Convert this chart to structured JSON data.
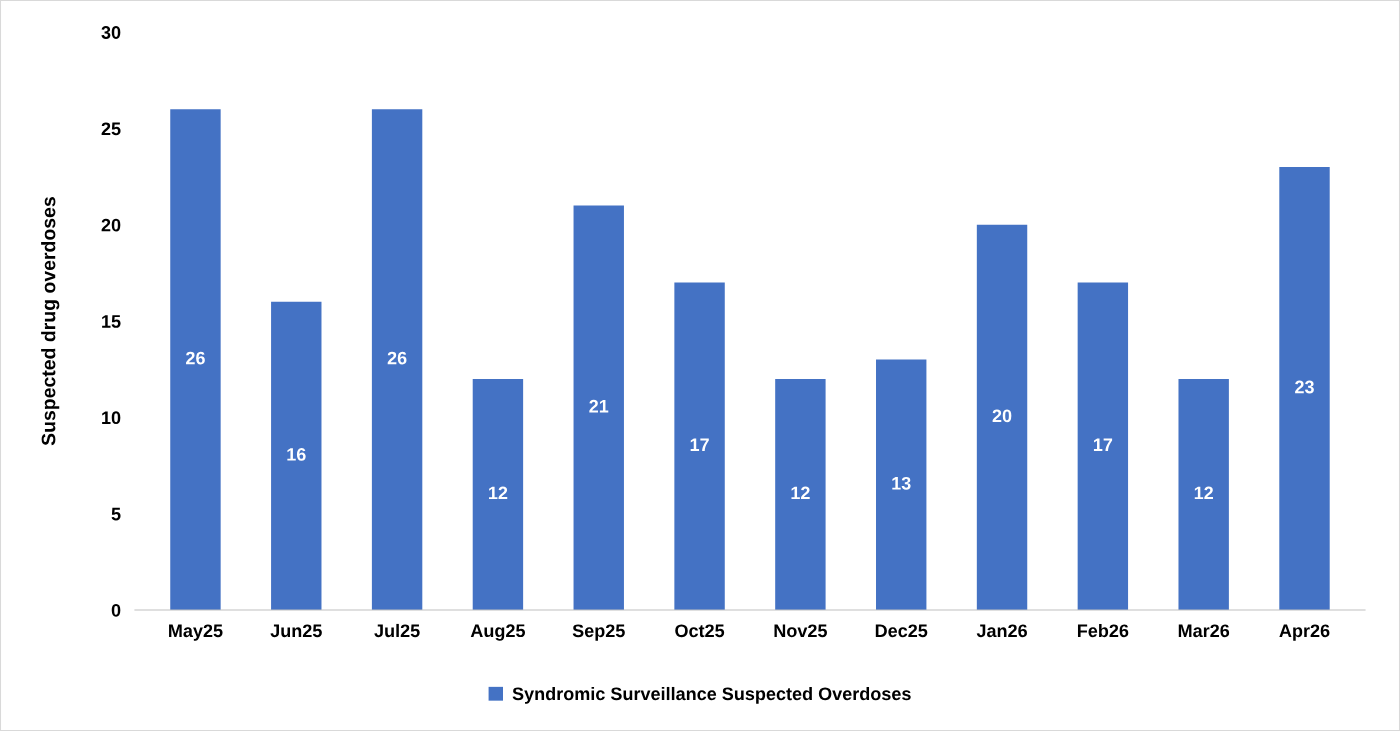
{
  "chart_data": {
    "type": "bar",
    "ylabel": "Suspected drug overdoses",
    "categories": [
      "May25",
      "Jun25",
      "Jul25",
      "Aug25",
      "Sep25",
      "Oct25",
      "Nov25",
      "Dec25",
      "Jan26",
      "Feb26",
      "Mar26",
      "Apr26"
    ],
    "series": [
      {
        "name": "Syndromic Surveillance Suspected Overdoses",
        "color": "#4472c4",
        "values": [
          26,
          16,
          26,
          12,
          21,
          17,
          12,
          13,
          20,
          17,
          12,
          23
        ]
      }
    ],
    "ylim": [
      0,
      30
    ],
    "yticks": [
      0,
      5,
      10,
      15,
      20,
      25,
      30
    ],
    "grid": false,
    "legend": "bottom",
    "data_labels": true
  }
}
